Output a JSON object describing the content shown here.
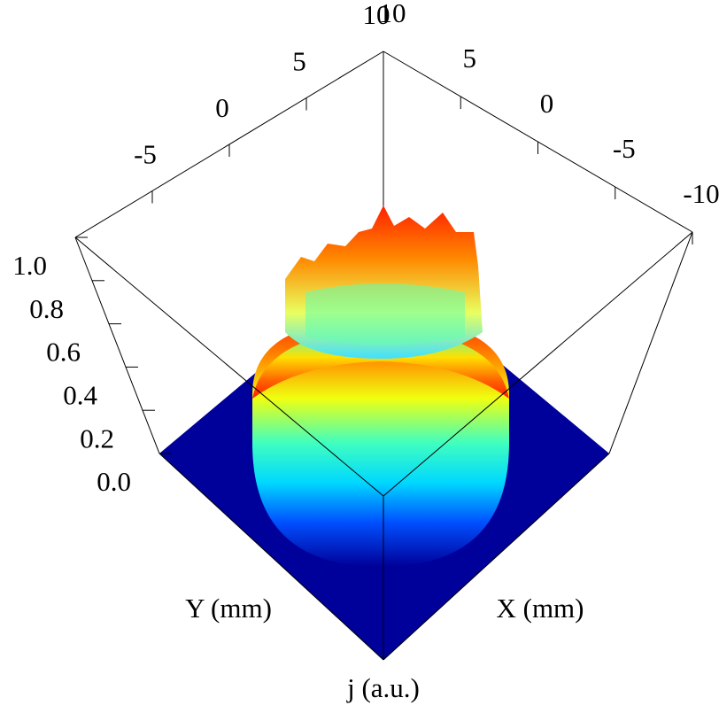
{
  "chart_data": {
    "type": "surface3d",
    "xlabel": "X (mm)",
    "ylabel": "Y (mm)",
    "zlabel": "j (a.u.)",
    "xlim": [
      -10,
      10
    ],
    "xticks": [
      -10,
      -5,
      0,
      5,
      10
    ],
    "ylim": [
      -10,
      10
    ],
    "yticks": [
      -5,
      0,
      5,
      10
    ],
    "zlim": [
      0,
      1
    ],
    "zticks": [
      {
        "value": 0,
        "label": "0.0"
      },
      0.2,
      0.4,
      0.6,
      0.8,
      {
        "value": 1,
        "label": "1.0"
      }
    ],
    "colormap": "jet"
  }
}
